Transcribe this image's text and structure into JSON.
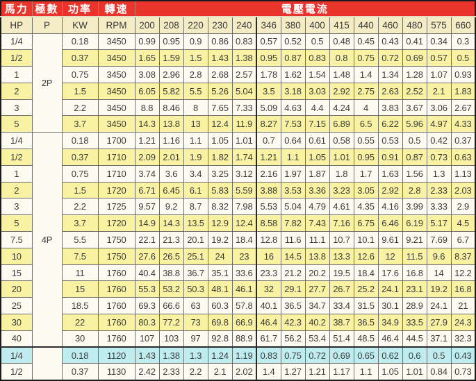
{
  "table": {
    "title_groups": [
      {
        "label": "馬力"
      },
      {
        "label": "極數"
      },
      {
        "label": "功率"
      },
      {
        "label": "轉速"
      },
      {
        "label": "電壓電流"
      }
    ],
    "sub_headers": [
      "HP",
      "P",
      "KW",
      "RPM"
    ],
    "voltages": [
      "200",
      "208",
      "220",
      "230",
      "240",
      "346",
      "380",
      "400",
      "415",
      "440",
      "460",
      "480",
      "575",
      "660"
    ],
    "sections": [
      {
        "pole": "2P",
        "rows": [
          {
            "hp": "1/4",
            "kw": "0.18",
            "rpm": "3450",
            "tone": "plain",
            "amps": [
              "0.99",
              "0.95",
              "0.9",
              "0.86",
              "0.83",
              "0.57",
              "0.52",
              "0.5",
              "0.48",
              "0.45",
              "0.43",
              "0.41",
              "0.34",
              "0.3"
            ]
          },
          {
            "hp": "1/2",
            "kw": "0.37",
            "rpm": "3450",
            "tone": "yellow",
            "amps": [
              "1.65",
              "1.59",
              "1.5",
              "1.43",
              "1.38",
              "0.95",
              "0.87",
              "0.83",
              "0.8",
              "0.75",
              "0.72",
              "0.69",
              "0.57",
              "0.5"
            ]
          },
          {
            "hp": "1",
            "kw": "0.75",
            "rpm": "3450",
            "tone": "plain",
            "amps": [
              "3.08",
              "2.96",
              "2.8",
              "2.68",
              "2.57",
              "1.78",
              "1.62",
              "1.54",
              "1.48",
              "1.4",
              "1.34",
              "1.28",
              "1.07",
              "0.93"
            ]
          },
          {
            "hp": "2",
            "kw": "1.5",
            "rpm": "3450",
            "tone": "yellow",
            "amps": [
              "6.05",
              "5.82",
              "5.5",
              "5.26",
              "5.04",
              "3.5",
              "3.18",
              "3.03",
              "2.92",
              "2.75",
              "2.63",
              "2.52",
              "2.1",
              "1.83"
            ]
          },
          {
            "hp": "3",
            "kw": "2.2",
            "rpm": "3450",
            "tone": "plain",
            "amps": [
              "8.8",
              "8.46",
              "8",
              "7.65",
              "7.33",
              "5.09",
              "4.63",
              "4.4",
              "4.24",
              "4",
              "3.83",
              "3.67",
              "3.06",
              "2.67"
            ]
          },
          {
            "hp": "5",
            "kw": "3.7",
            "rpm": "3450",
            "tone": "yellow",
            "amps": [
              "14.3",
              "13.8",
              "13",
              "12.4",
              "11.9",
              "8.27",
              "7.53",
              "7.15",
              "6.89",
              "6.5",
              "6.22",
              "5.96",
              "4.97",
              "4.33"
            ]
          }
        ]
      },
      {
        "pole": "4P",
        "rows": [
          {
            "hp": "1/4",
            "kw": "0.18",
            "rpm": "1700",
            "tone": "plain",
            "amps": [
              "1.21",
              "1.16",
              "1.1",
              "1.05",
              "1.01",
              "0.7",
              "0.64",
              "0.61",
              "0.58",
              "0.55",
              "0.53",
              "0.5",
              "0.42",
              "0.37"
            ]
          },
          {
            "hp": "1/2",
            "kw": "0.37",
            "rpm": "1710",
            "tone": "yellow",
            "amps": [
              "2.09",
              "2.01",
              "1.9",
              "1.82",
              "1.74",
              "1.21",
              "1.1",
              "1.05",
              "1.01",
              "0.95",
              "0.91",
              "0.87",
              "0.73",
              "0.63"
            ]
          },
          {
            "hp": "1",
            "kw": "0.75",
            "rpm": "1710",
            "tone": "plain",
            "amps": [
              "3.74",
              "3.6",
              "3.4",
              "3.25",
              "3.12",
              "2.16",
              "1.97",
              "1.87",
              "1.8",
              "1.7",
              "1.63",
              "1.56",
              "1.3",
              "1.13"
            ]
          },
          {
            "hp": "2",
            "kw": "1.5",
            "rpm": "1720",
            "tone": "yellow",
            "amps": [
              "6.71",
              "6.45",
              "6.1",
              "5.83",
              "5.59",
              "3.88",
              "3.53",
              "3.36",
              "3.23",
              "3.05",
              "2.92",
              "2.8",
              "2.33",
              "2.03"
            ]
          },
          {
            "hp": "3",
            "kw": "2.2",
            "rpm": "1725",
            "tone": "plain",
            "amps": [
              "9.57",
              "9.2",
              "8.7",
              "8.32",
              "7.98",
              "5.53",
              "5.04",
              "4.79",
              "4.61",
              "4.35",
              "4.16",
              "3.99",
              "3.33",
              "2.9"
            ]
          },
          {
            "hp": "5",
            "kw": "3.7",
            "rpm": "1720",
            "tone": "yellow",
            "amps": [
              "14.9",
              "14.3",
              "13.5",
              "12.9",
              "12.4",
              "8.58",
              "7.82",
              "7.43",
              "7.16",
              "6.75",
              "6.46",
              "6.19",
              "5.17",
              "4.5"
            ]
          },
          {
            "hp": "7.5",
            "kw": "5.5",
            "rpm": "1750",
            "tone": "plain",
            "amps": [
              "22.1",
              "21.3",
              "20.1",
              "19.2",
              "18.4",
              "12.8",
              "11.6",
              "11.1",
              "10.7",
              "10.1",
              "9.61",
              "9.21",
              "7.69",
              "6.7"
            ]
          },
          {
            "hp": "10",
            "kw": "7.5",
            "rpm": "1750",
            "tone": "yellow",
            "amps": [
              "27.6",
              "26.5",
              "25.1",
              "24",
              "23",
              "16",
              "14.5",
              "13.8",
              "13.3",
              "12.6",
              "12",
              "11.5",
              "9.6",
              "8.37"
            ]
          },
          {
            "hp": "15",
            "kw": "11",
            "rpm": "1760",
            "tone": "plain",
            "amps": [
              "40.4",
              "38.8",
              "36.7",
              "35.1",
              "33.6",
              "23.3",
              "21.2",
              "20.2",
              "19.5",
              "18.4",
              "17.6",
              "16.8",
              "14",
              "12.2"
            ]
          },
          {
            "hp": "20",
            "kw": "15",
            "rpm": "1760",
            "tone": "yellow",
            "amps": [
              "55.3",
              "53.2",
              "50.3",
              "48.1",
              "46.1",
              "32",
              "29.1",
              "27.7",
              "26.7",
              "25.2",
              "24.1",
              "23.1",
              "19.2",
              "16.8"
            ]
          },
          {
            "hp": "25",
            "kw": "18.5",
            "rpm": "1760",
            "tone": "plain",
            "amps": [
              "69.3",
              "66.6",
              "63",
              "60.3",
              "57.8",
              "40.1",
              "36.5",
              "34.7",
              "33.4",
              "31.5",
              "30.1",
              "28.9",
              "24.1",
              "21"
            ]
          },
          {
            "hp": "30",
            "kw": "22",
            "rpm": "1760",
            "tone": "yellow",
            "amps": [
              "80.3",
              "77.2",
              "73",
              "69.8",
              "66.9",
              "46.4",
              "42.3",
              "40.2",
              "38.7",
              "36.5",
              "34.9",
              "33.5",
              "27.9",
              "24.3"
            ]
          },
          {
            "hp": "40",
            "kw": "30",
            "rpm": "1760",
            "tone": "plain",
            "amps": [
              "107",
              "103",
              "97",
              "92.8",
              "88.9",
              "61.7",
              "56.2",
              "53.4",
              "51.4",
              "48.5",
              "46.4",
              "44.5",
              "37.1",
              "32.3"
            ]
          }
        ]
      },
      {
        "pole": "",
        "rows": [
          {
            "hp": "1/4",
            "kw": "0.18",
            "rpm": "1120",
            "tone": "cyan",
            "amps": [
              "1.43",
              "1.38",
              "1.3",
              "1.24",
              "1.19",
              "0.83",
              "0.75",
              "0.72",
              "0.69",
              "0.65",
              "0.62",
              "0.6",
              "0.5",
              "0.43"
            ]
          },
          {
            "hp": "1/2",
            "kw": "0.37",
            "rpm": "1130",
            "tone": "plain",
            "amps": [
              "2.42",
              "2.33",
              "2.2",
              "2.1",
              "2.02",
              "1.4",
              "1.27",
              "1.21",
              "1.17",
              "1.1",
              "1.05",
              "1.01",
              "0.84",
              "0.73"
            ]
          }
        ]
      }
    ]
  },
  "colors": {
    "header_red": "#e9342c",
    "header_text": "#ffffff",
    "subheader_bg": "#f4ecc4",
    "row_plain": "#fdfaf1",
    "row_yellow": "#f9f2a2",
    "row_cyan": "#bfecef",
    "grid_line": "#6e6e6e",
    "heavy_line": "#2a2a2a",
    "cell_text": "#3c3c3c"
  }
}
